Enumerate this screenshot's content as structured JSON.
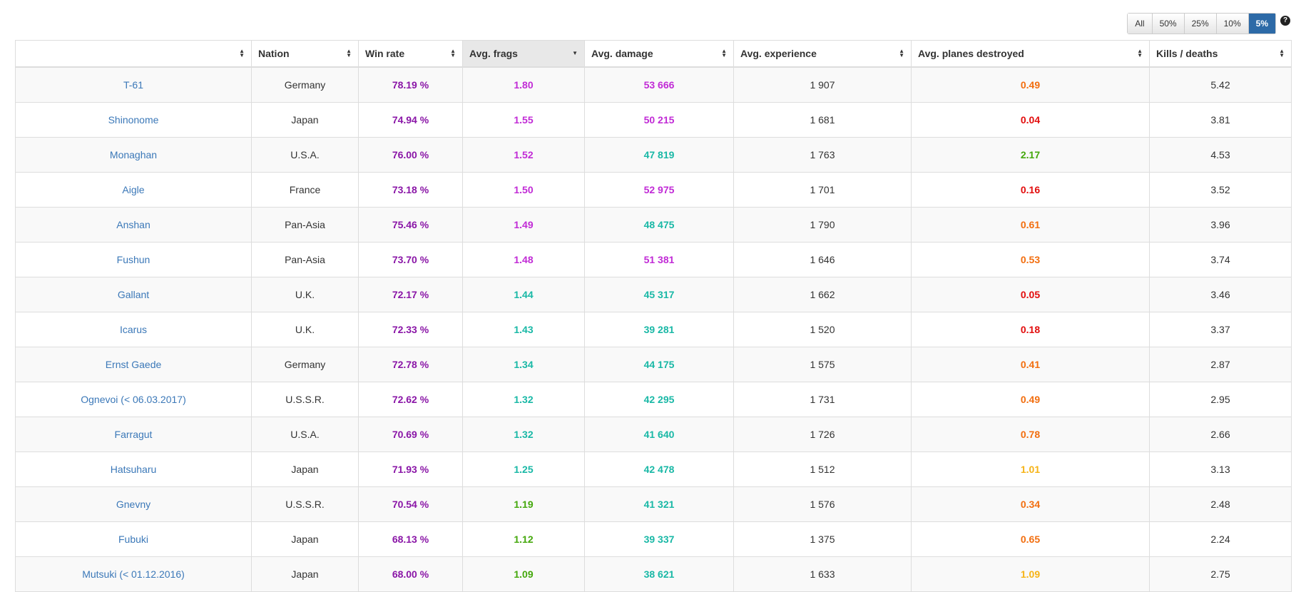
{
  "filters": {
    "buttons": [
      "All",
      "50%",
      "25%",
      "10%",
      "5%"
    ],
    "active": "5%",
    "help_icon": "question-circle-icon"
  },
  "table": {
    "columns": [
      "",
      "Nation",
      "Win rate",
      "Avg. frags",
      "Avg. damage",
      "Avg. experience",
      "Avg. planes destroyed",
      "Kills / deaths"
    ],
    "sorted_column": "Avg. frags",
    "sort_icon": "sort-icon",
    "sort_desc_icon": "sort-desc-icon",
    "colors": {
      "purple": "#8a16a7",
      "magenta": "#c12bd6",
      "teal": "#19b8a6",
      "green": "#44a80c",
      "red": "#e20d0d",
      "orange": "#f26e0f",
      "yellow": "#f6b316",
      "link": "#3b78b8"
    },
    "rows": [
      {
        "ship": "T-61",
        "nation": "Germany",
        "win_rate": "78.19 %",
        "win_rate_color": "#8a16a7",
        "frags": "1.80",
        "frags_color": "#c12bd6",
        "damage": "53 666",
        "damage_color": "#c12bd6",
        "experience": "1 907",
        "planes": "0.49",
        "planes_color": "#f26e0f",
        "kd": "5.42"
      },
      {
        "ship": "Shinonome",
        "nation": "Japan",
        "win_rate": "74.94 %",
        "win_rate_color": "#8a16a7",
        "frags": "1.55",
        "frags_color": "#c12bd6",
        "damage": "50 215",
        "damage_color": "#c12bd6",
        "experience": "1 681",
        "planes": "0.04",
        "planes_color": "#e20d0d",
        "kd": "3.81"
      },
      {
        "ship": "Monaghan",
        "nation": "U.S.A.",
        "win_rate": "76.00 %",
        "win_rate_color": "#8a16a7",
        "frags": "1.52",
        "frags_color": "#c12bd6",
        "damage": "47 819",
        "damage_color": "#19b8a6",
        "experience": "1 763",
        "planes": "2.17",
        "planes_color": "#44a80c",
        "kd": "4.53"
      },
      {
        "ship": "Aigle",
        "nation": "France",
        "win_rate": "73.18 %",
        "win_rate_color": "#8a16a7",
        "frags": "1.50",
        "frags_color": "#c12bd6",
        "damage": "52 975",
        "damage_color": "#c12bd6",
        "experience": "1 701",
        "planes": "0.16",
        "planes_color": "#e20d0d",
        "kd": "3.52"
      },
      {
        "ship": "Anshan",
        "nation": "Pan-Asia",
        "win_rate": "75.46 %",
        "win_rate_color": "#8a16a7",
        "frags": "1.49",
        "frags_color": "#c12bd6",
        "damage": "48 475",
        "damage_color": "#19b8a6",
        "experience": "1 790",
        "planes": "0.61",
        "planes_color": "#f26e0f",
        "kd": "3.96"
      },
      {
        "ship": "Fushun",
        "nation": "Pan-Asia",
        "win_rate": "73.70 %",
        "win_rate_color": "#8a16a7",
        "frags": "1.48",
        "frags_color": "#c12bd6",
        "damage": "51 381",
        "damage_color": "#c12bd6",
        "experience": "1 646",
        "planes": "0.53",
        "planes_color": "#f26e0f",
        "kd": "3.74"
      },
      {
        "ship": "Gallant",
        "nation": "U.K.",
        "win_rate": "72.17 %",
        "win_rate_color": "#8a16a7",
        "frags": "1.44",
        "frags_color": "#19b8a6",
        "damage": "45 317",
        "damage_color": "#19b8a6",
        "experience": "1 662",
        "planes": "0.05",
        "planes_color": "#e20d0d",
        "kd": "3.46"
      },
      {
        "ship": "Icarus",
        "nation": "U.K.",
        "win_rate": "72.33 %",
        "win_rate_color": "#8a16a7",
        "frags": "1.43",
        "frags_color": "#19b8a6",
        "damage": "39 281",
        "damage_color": "#19b8a6",
        "experience": "1 520",
        "planes": "0.18",
        "planes_color": "#e20d0d",
        "kd": "3.37"
      },
      {
        "ship": "Ernst Gaede",
        "nation": "Germany",
        "win_rate": "72.78 %",
        "win_rate_color": "#8a16a7",
        "frags": "1.34",
        "frags_color": "#19b8a6",
        "damage": "44 175",
        "damage_color": "#19b8a6",
        "experience": "1 575",
        "planes": "0.41",
        "planes_color": "#f26e0f",
        "kd": "2.87"
      },
      {
        "ship": "Ognevoi (< 06.03.2017)",
        "nation": "U.S.S.R.",
        "win_rate": "72.62 %",
        "win_rate_color": "#8a16a7",
        "frags": "1.32",
        "frags_color": "#19b8a6",
        "damage": "42 295",
        "damage_color": "#19b8a6",
        "experience": "1 731",
        "planes": "0.49",
        "planes_color": "#f26e0f",
        "kd": "2.95"
      },
      {
        "ship": "Farragut",
        "nation": "U.S.A.",
        "win_rate": "70.69 %",
        "win_rate_color": "#8a16a7",
        "frags": "1.32",
        "frags_color": "#19b8a6",
        "damage": "41 640",
        "damage_color": "#19b8a6",
        "experience": "1 726",
        "planes": "0.78",
        "planes_color": "#f26e0f",
        "kd": "2.66"
      },
      {
        "ship": "Hatsuharu",
        "nation": "Japan",
        "win_rate": "71.93 %",
        "win_rate_color": "#8a16a7",
        "frags": "1.25",
        "frags_color": "#19b8a6",
        "damage": "42 478",
        "damage_color": "#19b8a6",
        "experience": "1 512",
        "planes": "1.01",
        "planes_color": "#f6b316",
        "kd": "3.13"
      },
      {
        "ship": "Gnevny",
        "nation": "U.S.S.R.",
        "win_rate": "70.54 %",
        "win_rate_color": "#8a16a7",
        "frags": "1.19",
        "frags_color": "#44a80c",
        "damage": "41 321",
        "damage_color": "#19b8a6",
        "experience": "1 576",
        "planes": "0.34",
        "planes_color": "#f26e0f",
        "kd": "2.48"
      },
      {
        "ship": "Fubuki",
        "nation": "Japan",
        "win_rate": "68.13 %",
        "win_rate_color": "#8a16a7",
        "frags": "1.12",
        "frags_color": "#44a80c",
        "damage": "39 337",
        "damage_color": "#19b8a6",
        "experience": "1 375",
        "planes": "0.65",
        "planes_color": "#f26e0f",
        "kd": "2.24"
      },
      {
        "ship": "Mutsuki (< 01.12.2016)",
        "nation": "Japan",
        "win_rate": "68.00 %",
        "win_rate_color": "#8a16a7",
        "frags": "1.09",
        "frags_color": "#44a80c",
        "damage": "38 621",
        "damage_color": "#19b8a6",
        "experience": "1 633",
        "planes": "1.09",
        "planes_color": "#f6b316",
        "kd": "2.75"
      }
    ]
  }
}
